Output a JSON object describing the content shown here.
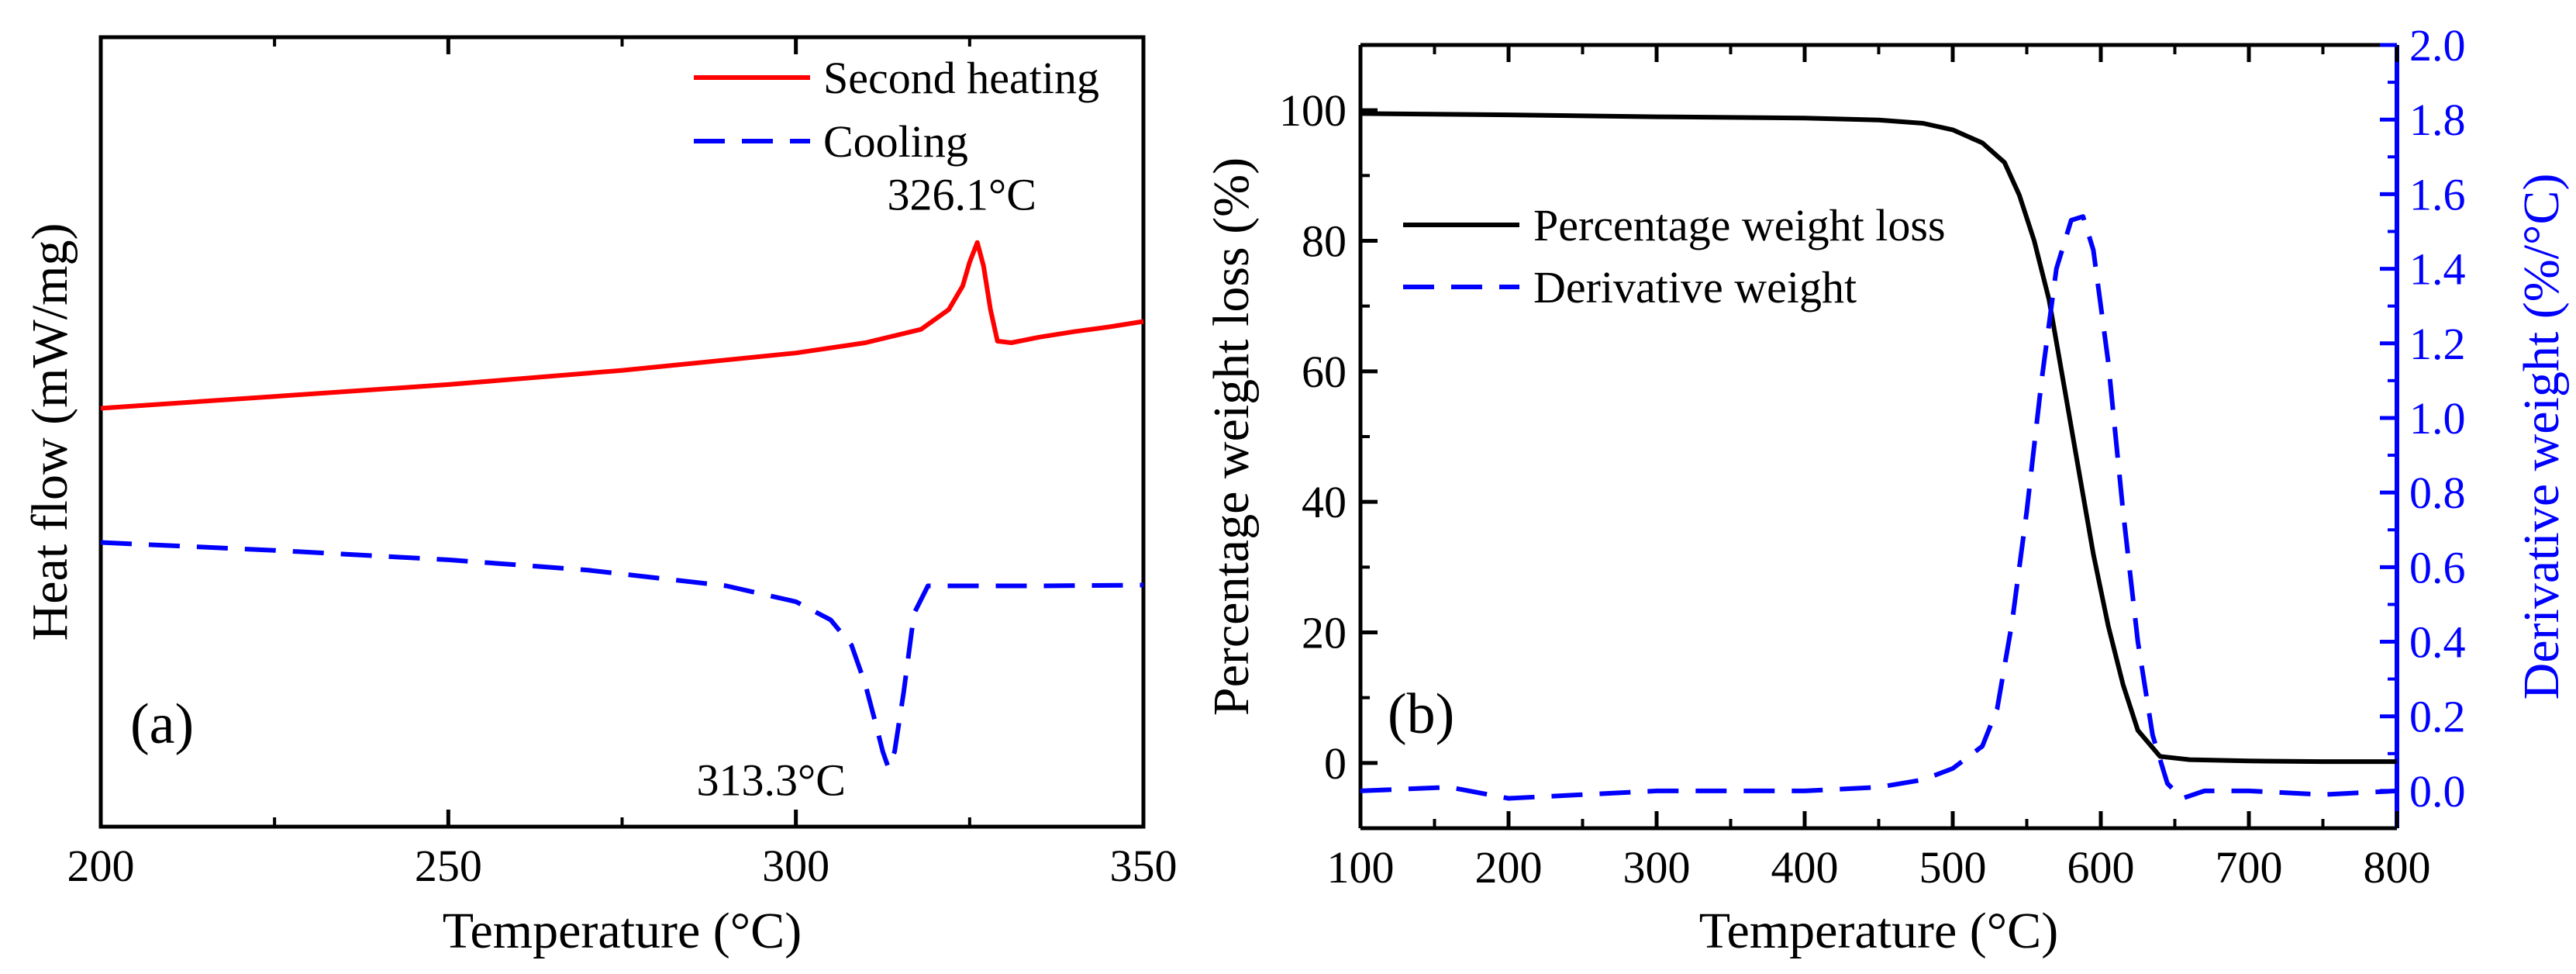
{
  "chart_data": [
    {
      "panel_label": "(a)",
      "type": "line",
      "xlabel": "Temperature (°C)",
      "ylabel": "Heat flow (mW/mg)",
      "xlim": [
        200,
        350
      ],
      "xticks": [
        200,
        250,
        300,
        350
      ],
      "y_ticks_shown": false,
      "ylim": [
        0,
        1
      ],
      "legend_position": "top-right",
      "grid": false,
      "series": [
        {
          "name": "Second heating",
          "color": "#ff0000",
          "style": "solid",
          "x": [
            200,
            225,
            250,
            275,
            300,
            310,
            318,
            322,
            324,
            325,
            326.1,
            327,
            328,
            329,
            331,
            335,
            340,
            345,
            350
          ],
          "y": [
            0.53,
            0.545,
            0.56,
            0.578,
            0.6,
            0.613,
            0.63,
            0.655,
            0.685,
            0.715,
            0.74,
            0.71,
            0.655,
            0.615,
            0.613,
            0.62,
            0.627,
            0.633,
            0.64
          ]
        },
        {
          "name": "Cooling",
          "color": "#0000ff",
          "style": "dashed",
          "x": [
            200,
            225,
            250,
            270,
            290,
            300,
            305,
            308,
            310,
            311.5,
            312.5,
            313.3,
            314.2,
            315.5,
            317,
            319,
            325,
            335,
            350
          ],
          "y": [
            0.36,
            0.35,
            0.338,
            0.325,
            0.305,
            0.285,
            0.262,
            0.23,
            0.18,
            0.13,
            0.095,
            0.075,
            0.095,
            0.17,
            0.27,
            0.305,
            0.305,
            0.305,
            0.306
          ]
        }
      ],
      "annotations": [
        {
          "text": "326.1°C",
          "x": 326.1,
          "y": 0.74
        },
        {
          "text": "313.3°C",
          "x": 313.3,
          "y": 0.075
        }
      ]
    },
    {
      "panel_label": "(b)",
      "type": "line",
      "xlabel": "Temperature (°C)",
      "ylabel": "Percentage weight loss (%)",
      "y2label": "Derivative weight (%/°C)",
      "xlim": [
        100,
        800
      ],
      "ylim": [
        -10,
        110
      ],
      "y2lim": [
        -0.1,
        2.0
      ],
      "xticks": [
        100,
        200,
        300,
        400,
        500,
        600,
        700,
        800
      ],
      "yticks": [
        0,
        20,
        40,
        60,
        80,
        100
      ],
      "y2ticks": [
        0.0,
        0.2,
        0.4,
        0.6,
        0.8,
        1.0,
        1.2,
        1.4,
        1.6,
        1.8,
        2.0
      ],
      "legend_position": "upper-left",
      "grid": false,
      "series": [
        {
          "name": "Percentage weight loss",
          "axis": "left",
          "color": "#000000",
          "style": "solid",
          "x": [
            100,
            200,
            300,
            400,
            450,
            480,
            500,
            520,
            535,
            545,
            555,
            565,
            575,
            585,
            595,
            605,
            615,
            625,
            640,
            660,
            700,
            750,
            800
          ],
          "y": [
            99.5,
            99.3,
            99.0,
            98.8,
            98.5,
            98.0,
            97.0,
            95.0,
            92.0,
            87.0,
            80.0,
            71.0,
            58.0,
            45.0,
            32.0,
            21.0,
            12.0,
            5.0,
            1.0,
            0.5,
            0.3,
            0.2,
            0.2
          ]
        },
        {
          "name": "Derivative weight",
          "axis": "right",
          "color": "#0000ff",
          "style": "dashed",
          "x": [
            100,
            160,
            200,
            250,
            300,
            350,
            400,
            450,
            480,
            500,
            520,
            530,
            540,
            550,
            560,
            570,
            580,
            588,
            595,
            605,
            615,
            625,
            635,
            645,
            655,
            670,
            700,
            750,
            800
          ],
          "y": [
            0.0,
            0.01,
            -0.02,
            -0.01,
            0.0,
            0.0,
            0.0,
            0.01,
            0.03,
            0.06,
            0.12,
            0.22,
            0.45,
            0.75,
            1.1,
            1.4,
            1.53,
            1.54,
            1.45,
            1.15,
            0.75,
            0.4,
            0.15,
            0.02,
            -0.02,
            0.0,
            0.0,
            -0.01,
            0.0
          ]
        }
      ]
    }
  ]
}
